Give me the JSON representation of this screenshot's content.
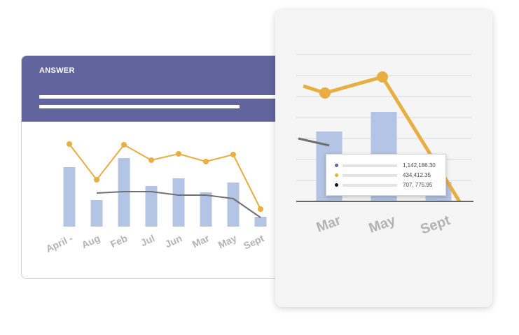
{
  "back_card": {
    "title": "ANSWER"
  },
  "tooltip": {
    "rows": [
      {
        "color": "#62659d",
        "value": "1,142,186.30"
      },
      {
        "color": "#e8ae42",
        "value": "434,412.35"
      },
      {
        "color": "#111111",
        "value": "707, 775.95"
      }
    ]
  },
  "colors": {
    "header": "#62659d",
    "bar": "#b4c4e4",
    "line_orange": "#e8ae42",
    "line_gray": "#707070",
    "tick_label": "#b3b3b3"
  },
  "chart_data": [
    {
      "type": "bar",
      "categories": [
        "April -",
        "Aug",
        "Feb",
        "Jul",
        "Jun",
        "Mar",
        "May",
        "Sept"
      ],
      "series": [
        {
          "kind": "bar",
          "values": [
            85,
            38,
            98,
            58,
            69,
            49,
            63,
            14
          ]
        },
        {
          "kind": "line",
          "color": "#e8ae42",
          "values": [
            118,
            67,
            117,
            95,
            104,
            93,
            103,
            25
          ]
        },
        {
          "kind": "line",
          "color": "#707070",
          "values": [
            null,
            48,
            50,
            50,
            45,
            45,
            40,
            13
          ]
        }
      ],
      "ylim": [
        0,
        140
      ]
    },
    {
      "type": "bar",
      "categories": [
        "Mar",
        "May",
        "Sept"
      ],
      "series": [
        {
          "kind": "bar",
          "values": [
            100,
            128,
            28
          ]
        },
        {
          "kind": "line",
          "color": "#e8ae42",
          "values": [
            155,
            178,
            70
          ]
        },
        {
          "kind": "line",
          "color": "#707070",
          "values": [
            90,
            80,
            null
          ]
        }
      ],
      "ylim": [
        0,
        210
      ],
      "grid": true
    }
  ]
}
